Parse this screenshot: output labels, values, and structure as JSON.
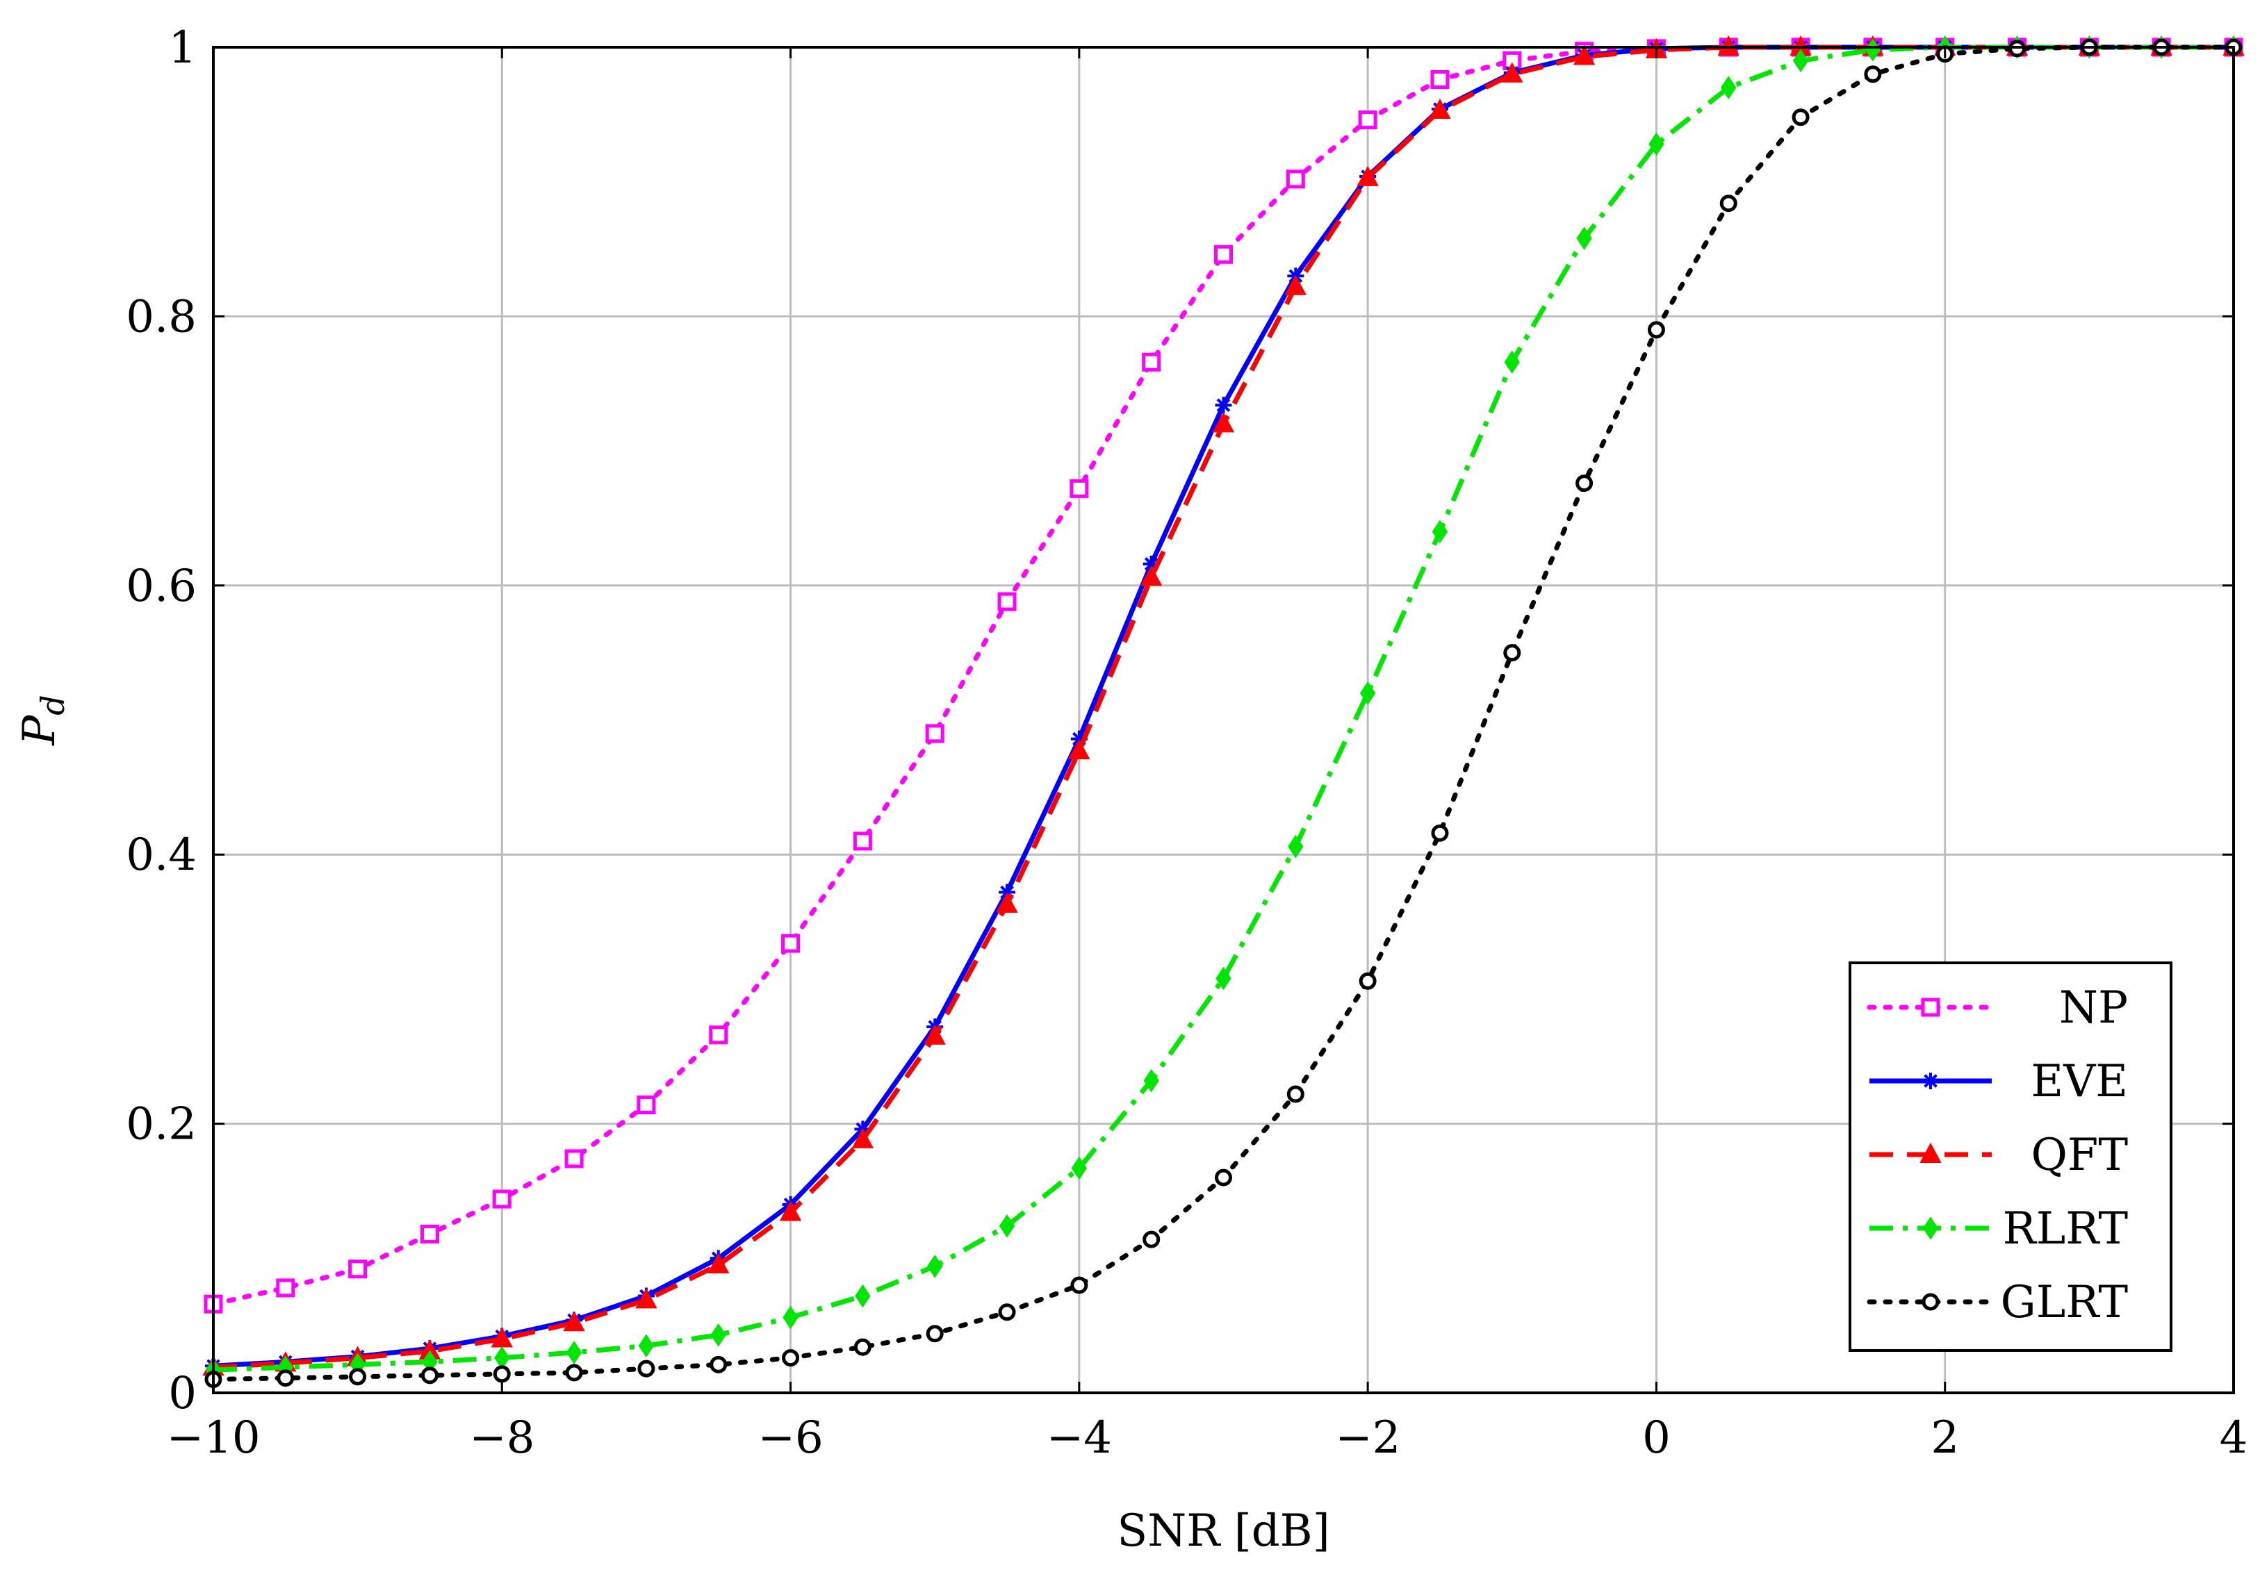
{
  "chart_data": {
    "type": "line",
    "title": "",
    "xlabel": "SNR [dB]",
    "ylabel_main": "P",
    "ylabel_sub": "d",
    "xlim": [
      -10,
      4
    ],
    "ylim": [
      0,
      1
    ],
    "grid": true,
    "legend_position": "bottom-right",
    "xticks": [
      -10,
      -8,
      -6,
      -4,
      -2,
      0,
      2,
      4
    ],
    "xtick_labels": [
      "−10",
      "−8",
      "−6",
      "−4",
      "−2",
      "0",
      "2",
      "4"
    ],
    "yticks": [
      0,
      0.2,
      0.4,
      0.6,
      0.8,
      1
    ],
    "ytick_labels": [
      "0",
      "0.2",
      "0.4",
      "0.6",
      "0.8",
      "1"
    ],
    "x": [
      -10,
      -9.5,
      -9,
      -8.5,
      -8,
      -7.5,
      -7,
      -6.5,
      -6,
      -5.5,
      -5,
      -4.5,
      -4,
      -3.5,
      -3,
      -2.5,
      -2,
      -1.5,
      -1,
      -0.5,
      0,
      0.5,
      1,
      1.5,
      2,
      2.5,
      3,
      3.5,
      4
    ],
    "series": [
      {
        "name": "NP",
        "color": "#ff00ff",
        "dash": "dotted",
        "marker": "square",
        "values": [
          0.066,
          0.078,
          0.092,
          0.118,
          0.144,
          0.174,
          0.214,
          0.266,
          0.334,
          0.41,
          0.49,
          0.588,
          0.672,
          0.766,
          0.846,
          0.902,
          0.946,
          0.976,
          0.99,
          0.997,
          0.999,
          1.0,
          1.0,
          1.0,
          1.0,
          1.0,
          1.0,
          1.0,
          1.0
        ]
      },
      {
        "name": "EVE",
        "color": "#0000ff",
        "dash": "solid",
        "marker": "star",
        "values": [
          0.02,
          0.023,
          0.027,
          0.033,
          0.042,
          0.054,
          0.072,
          0.1,
          0.14,
          0.196,
          0.272,
          0.372,
          0.486,
          0.616,
          0.734,
          0.83,
          0.904,
          0.954,
          0.981,
          0.994,
          0.999,
          1.0,
          1.0,
          1.0,
          1.0,
          1.0,
          1.0,
          1.0,
          1.0
        ]
      },
      {
        "name": "QFT",
        "color": "#ff0000",
        "dash": "dashed",
        "marker": "triangle",
        "values": [
          0.019,
          0.022,
          0.026,
          0.031,
          0.04,
          0.052,
          0.069,
          0.095,
          0.134,
          0.188,
          0.265,
          0.363,
          0.477,
          0.606,
          0.72,
          0.822,
          0.903,
          0.953,
          0.98,
          0.993,
          0.998,
          1.0,
          1.0,
          1.0,
          1.0,
          1.0,
          1.0,
          1.0,
          1.0
        ]
      },
      {
        "name": "RLRT",
        "color": "#00e600",
        "dash": "dashdot",
        "marker": "diamond",
        "values": [
          0.017,
          0.019,
          0.021,
          0.023,
          0.026,
          0.03,
          0.035,
          0.043,
          0.056,
          0.072,
          0.094,
          0.124,
          0.167,
          0.232,
          0.308,
          0.406,
          0.52,
          0.64,
          0.766,
          0.858,
          0.928,
          0.97,
          0.99,
          0.998,
          1.0,
          1.0,
          1.0,
          1.0,
          1.0
        ]
      },
      {
        "name": "GLRT",
        "color": "#000000",
        "dash": "dotted",
        "marker": "circle",
        "values": [
          0.01,
          0.011,
          0.012,
          0.013,
          0.014,
          0.015,
          0.018,
          0.021,
          0.026,
          0.034,
          0.044,
          0.06,
          0.08,
          0.114,
          0.16,
          0.222,
          0.306,
          0.416,
          0.55,
          0.676,
          0.79,
          0.884,
          0.948,
          0.98,
          0.995,
          0.999,
          1.0,
          1.0,
          1.0
        ]
      }
    ]
  }
}
